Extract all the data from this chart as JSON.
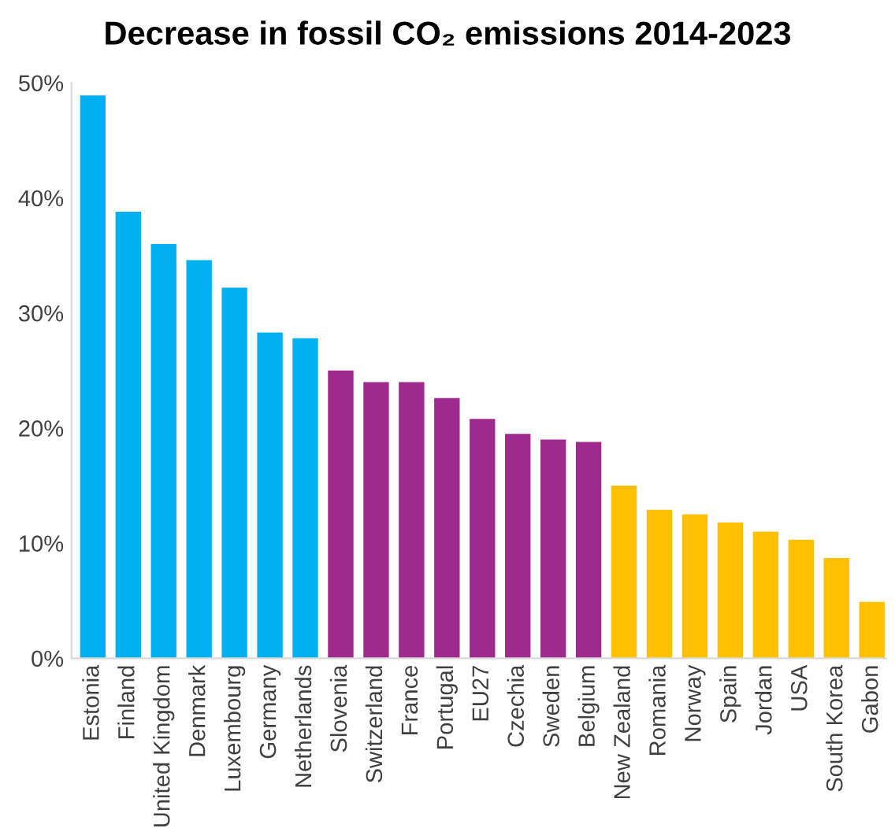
{
  "chart_data": {
    "type": "bar",
    "title": "Decrease in fossil CO₂ emissions 2014-2023",
    "categories": [
      "Estonia",
      "Finland",
      "United Kingdom",
      "Denmark",
      "Luxembourg",
      "Germany",
      "Netherlands",
      "Slovenia",
      "Switzerland",
      "France",
      "Portugal",
      "EU27",
      "Czechia",
      "Sweden",
      "Belgium",
      "New Zealand",
      "Romania",
      "Norway",
      "Spain",
      "Jordan",
      "USA",
      "South Korea",
      "Gabon"
    ],
    "values": [
      48.9,
      38.8,
      36.0,
      34.6,
      32.2,
      28.3,
      27.8,
      25.0,
      24.0,
      24.0,
      22.6,
      20.8,
      19.5,
      19.0,
      18.8,
      15.0,
      12.9,
      12.5,
      11.8,
      11.0,
      10.3,
      8.7,
      4.9
    ],
    "colors": [
      "#00b0f0",
      "#00b0f0",
      "#00b0f0",
      "#00b0f0",
      "#00b0f0",
      "#00b0f0",
      "#00b0f0",
      "#9e2a8e",
      "#9e2a8e",
      "#9e2a8e",
      "#9e2a8e",
      "#9e2a8e",
      "#9e2a8e",
      "#9e2a8e",
      "#9e2a8e",
      "#ffc000",
      "#ffc000",
      "#ffc000",
      "#ffc000",
      "#ffc000",
      "#ffc000",
      "#ffc000",
      "#ffc000"
    ],
    "ylim": [
      0,
      50
    ],
    "yticks": [
      {
        "value": 0,
        "label": "0%"
      },
      {
        "value": 10,
        "label": "10%"
      },
      {
        "value": 20,
        "label": "20%"
      },
      {
        "value": 30,
        "label": "30%"
      },
      {
        "value": 40,
        "label": "40%"
      },
      {
        "value": 50,
        "label": "50%"
      }
    ],
    "grid": false,
    "legend": false
  }
}
